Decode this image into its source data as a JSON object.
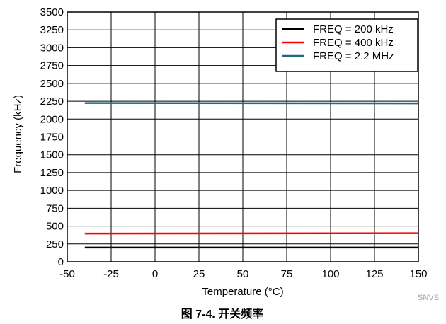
{
  "chart_data": {
    "type": "line",
    "title": "",
    "xlabel": "Temperature (°C)",
    "ylabel": "Frequency (kHz)",
    "xlim": [
      -50,
      150
    ],
    "ylim": [
      0,
      3500
    ],
    "x_ticks": [
      -50,
      -25,
      0,
      25,
      50,
      75,
      100,
      125,
      150
    ],
    "y_ticks": [
      0,
      250,
      500,
      750,
      1000,
      1250,
      1500,
      1750,
      2000,
      2250,
      2500,
      2750,
      3000,
      3250,
      3500
    ],
    "grid": true,
    "legend_position": "top-right",
    "series": [
      {
        "name": "FREQ = 200 kHz",
        "color": "#000000",
        "x": [
          -40,
          150
        ],
        "y": [
          200,
          200
        ]
      },
      {
        "name": "FREQ = 400 kHz",
        "color": "#ff0000",
        "x": [
          -40,
          150
        ],
        "y": [
          395,
          400
        ]
      },
      {
        "name": "FREQ = 2.2 MHz",
        "color": "#1f6b7a",
        "x": [
          -40,
          150
        ],
        "y": [
          2225,
          2220
        ]
      }
    ]
  },
  "source_tag": "SNVS",
  "caption": "图 7-4. 开关频率"
}
